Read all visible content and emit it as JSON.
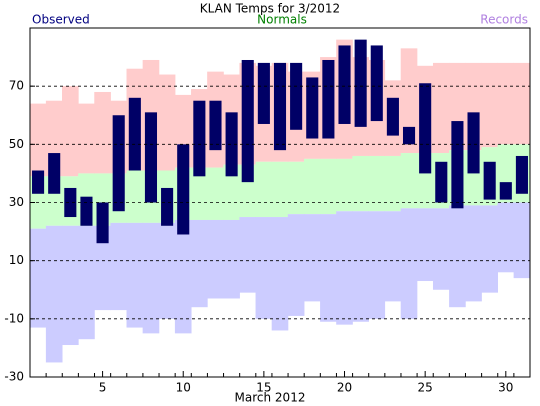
{
  "chart_data": {
    "type": "daily-range",
    "title": "KLAN Temps for 3/2012",
    "xlabel": "March 2012",
    "x": [
      1,
      2,
      3,
      4,
      5,
      6,
      7,
      8,
      9,
      10,
      11,
      12,
      13,
      14,
      15,
      16,
      17,
      18,
      19,
      20,
      21,
      22,
      23,
      24,
      25,
      26,
      27,
      28,
      29,
      30,
      31
    ],
    "xlim": [
      0.5,
      31.5
    ],
    "xticks": [
      5,
      10,
      15,
      20,
      25,
      30
    ],
    "ylim": [
      -30,
      90
    ],
    "yticks": [
      -30,
      -10,
      10,
      30,
      50,
      70
    ],
    "grid": true,
    "series": [
      {
        "name": "Records",
        "color": "#b080e0",
        "high_color": "#ffcccc",
        "low_color": "#ccccff",
        "low": [
          -13,
          -25,
          -19,
          -17,
          -7,
          -7,
          -13,
          -15,
          -10,
          -15,
          -6,
          -3,
          -3,
          -1,
          -10,
          -14,
          -9,
          -4,
          -11,
          -12,
          -11,
          -10,
          -4,
          -10,
          3,
          0,
          -6,
          -4,
          -1,
          6,
          4
        ],
        "high": [
          64,
          65,
          70,
          64,
          68,
          65,
          76,
          79,
          74,
          67,
          69,
          75,
          74,
          78,
          77,
          78,
          75,
          75,
          80,
          86,
          80,
          79,
          72,
          83,
          77,
          78,
          78,
          78,
          78,
          78,
          78
        ]
      },
      {
        "name": "Normals",
        "color": "#008000",
        "fill": "#ccffcc",
        "low": [
          21,
          22,
          22,
          22,
          22,
          23,
          23,
          23,
          23,
          24,
          24,
          24,
          24,
          25,
          25,
          25,
          26,
          26,
          26,
          27,
          27,
          27,
          27,
          28,
          28,
          28,
          29,
          29,
          29,
          30,
          30
        ],
        "high": [
          39,
          39,
          39,
          40,
          40,
          40,
          41,
          41,
          41,
          42,
          42,
          42,
          43,
          43,
          44,
          44,
          44,
          45,
          45,
          45,
          46,
          46,
          46,
          47,
          47,
          47,
          48,
          48,
          49,
          50,
          50
        ]
      },
      {
        "name": "Observed",
        "color": "#000080",
        "fill": "#000066",
        "low": [
          33,
          33,
          25,
          22,
          16,
          27,
          41,
          30,
          22,
          19,
          39,
          48,
          39,
          37,
          57,
          48,
          55,
          52,
          52,
          57,
          56,
          58,
          53,
          50,
          40,
          30,
          28,
          40,
          31,
          31,
          33
        ],
        "high": [
          41,
          47,
          35,
          32,
          30,
          60,
          66,
          61,
          35,
          50,
          65,
          65,
          61,
          79,
          78,
          78,
          78,
          73,
          79,
          84,
          86,
          84,
          66,
          56,
          71,
          44,
          58,
          61,
          44,
          37,
          46
        ]
      }
    ]
  }
}
